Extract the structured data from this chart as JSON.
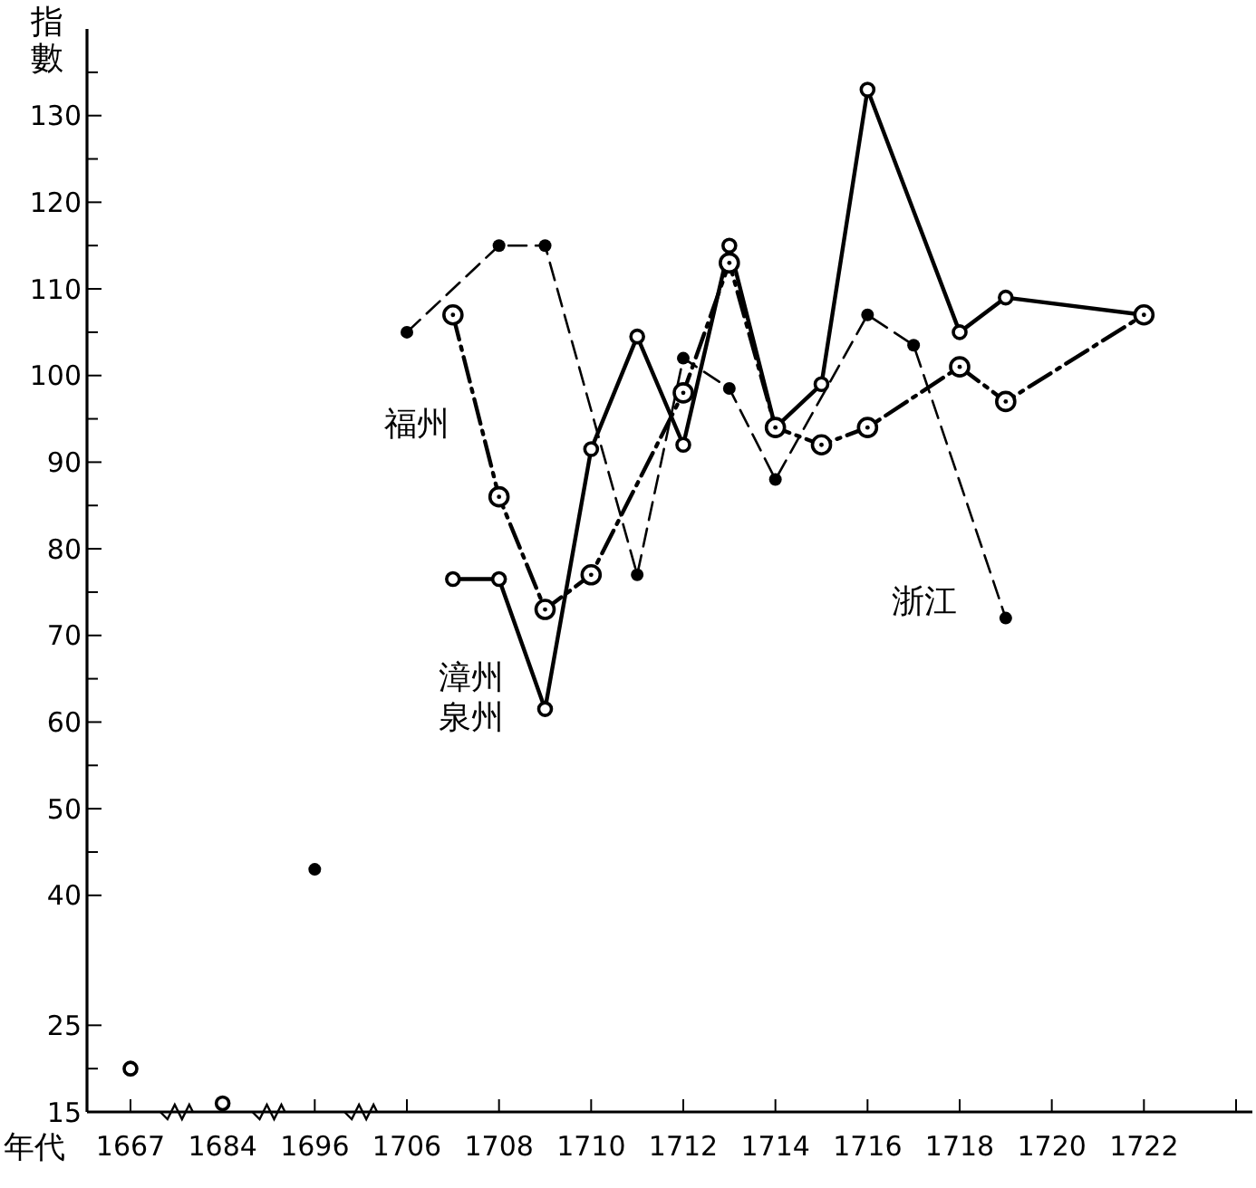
{
  "chart_data": {
    "type": "line",
    "ylabel": "指數",
    "xlabel": "年代",
    "categories": [
      "1667",
      null,
      "1684",
      null,
      "1696",
      null,
      "1706",
      null,
      "1708",
      null,
      "1710",
      null,
      "1712",
      null,
      "1714",
      null,
      "1716",
      null,
      "1718",
      null,
      "1720",
      null,
      "1722",
      null,
      null
    ],
    "ylim": [
      15,
      140
    ],
    "yticks": [
      15,
      {
        "value": 20,
        "label": null
      },
      25,
      40,
      {
        "value": 45,
        "label": null
      },
      50,
      {
        "value": 55,
        "label": null
      },
      60,
      {
        "value": 65,
        "label": null
      },
      70,
      {
        "value": 75,
        "label": null
      },
      80,
      {
        "value": 85,
        "label": null
      },
      90,
      {
        "value": 95,
        "label": null
      },
      100,
      {
        "value": 105,
        "label": null
      },
      110,
      {
        "value": 115,
        "label": null
      },
      120,
      {
        "value": 125,
        "label": null
      },
      130,
      {
        "value": 135,
        "label": null
      }
    ],
    "grid": false,
    "marker": "circle",
    "series": [
      {
        "name": "浙江",
        "color": "#000000",
        "line_style": "dashed",
        "values": [
          null,
          null,
          null,
          null,
          null,
          null,
          105,
          null,
          115,
          115,
          null,
          77,
          102,
          98.5,
          88,
          null,
          107,
          103.5,
          null,
          72,
          null,
          null,
          null,
          null,
          null
        ]
      },
      {
        "name": "漳州泉州",
        "color": "#000000",
        "line_style": "solid",
        "values": [
          null,
          null,
          null,
          null,
          null,
          null,
          null,
          76.5,
          76.5,
          61.5,
          91.5,
          104.5,
          92,
          115,
          94,
          99,
          133,
          null,
          105,
          109,
          null,
          null,
          107,
          null,
          null
        ]
      },
      {
        "name": "福州",
        "color": "#000000",
        "line_style": "dotted",
        "values": [
          null,
          null,
          null,
          null,
          null,
          null,
          null,
          107,
          86,
          73,
          77,
          null,
          98,
          113,
          94,
          92,
          94,
          null,
          101,
          97,
          null,
          null,
          107,
          null,
          null
        ]
      },
      {
        "type": "scatter",
        "color": "#000000",
        "line_style": "solid",
        "values": [
          20,
          null,
          16,
          null,
          null,
          null,
          null,
          null,
          null,
          null,
          null,
          null,
          null,
          null,
          null,
          null,
          null,
          null,
          null,
          null,
          null,
          null,
          null,
          null,
          null
        ]
      },
      {
        "type": "scatter",
        "color": "#000000",
        "line_style": "dashed",
        "values": [
          null,
          null,
          null,
          null,
          43,
          null,
          null,
          null,
          null,
          null,
          null,
          null,
          null,
          null,
          null,
          null,
          null,
          null,
          null,
          null,
          null,
          null,
          null,
          null,
          null
        ]
      }
    ]
  }
}
